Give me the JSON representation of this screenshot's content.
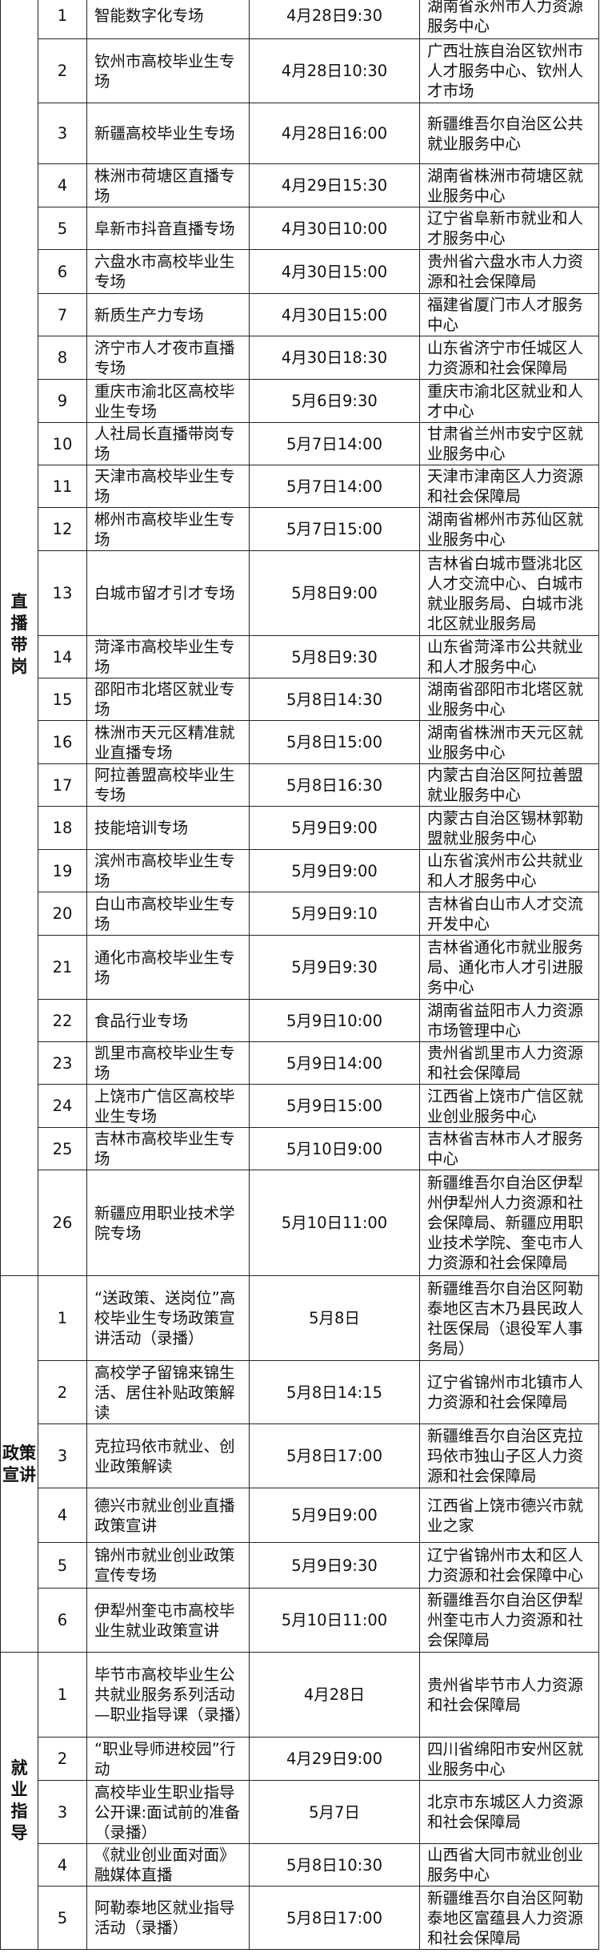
{
  "sections": [
    {
      "category": "直播带岗",
      "rows": [
        {
          "no": "1",
          "name": "智能数字化专场",
          "time": "4月28日9:30",
          "org": "湖南省永州市人力资源服务中心"
        },
        {
          "no": "2",
          "name": "钦州市高校毕业生专场",
          "time": "4月28日10:30",
          "org": "广西壮族自治区钦州市人才服务中心、钦州人才市场"
        },
        {
          "no": "3",
          "name": "新疆高校毕业生专场",
          "time": "4月28日16:00",
          "org": "新疆维吾尔自治区公共就业服务中心"
        },
        {
          "no": "4",
          "name": "株洲市荷塘区直播专场",
          "time": "4月29日15:30",
          "org": "湖南省株洲市荷塘区就业服务中心"
        },
        {
          "no": "5",
          "name": "阜新市抖音直播专场",
          "time": "4月30日10:00",
          "org": "辽宁省阜新市就业和人才服务中心"
        },
        {
          "no": "6",
          "name": "六盘水市高校毕业生专场",
          "time": "4月30日15:00",
          "org": "贵州省六盘水市人力资源和社会保障局"
        },
        {
          "no": "7",
          "name": "新质生产力专场",
          "time": "4月30日15:00",
          "org": "福建省厦门市人才服务中心"
        },
        {
          "no": "8",
          "name": "济宁市人才夜市直播专场",
          "time": "4月30日18:30",
          "org": "山东省济宁市任城区人力资源和社会保障局"
        },
        {
          "no": "9",
          "name": "重庆市渝北区高校毕业生专场",
          "time": "5月6日9:30",
          "org": "重庆市渝北区就业和人才中心"
        },
        {
          "no": "10",
          "name": "人社局长直播带岗专场",
          "time": "5月7日14:00",
          "org": "甘肃省兰州市安宁区就业服务中心"
        },
        {
          "no": "11",
          "name": "天津市高校毕业生专场",
          "time": "5月7日14:00",
          "org": "天津市津南区人力资源和社会保障局"
        },
        {
          "no": "12",
          "name": "郴州市高校毕业生专场",
          "time": "5月7日15:00",
          "org": "湖南省郴州市苏仙区就业服务中心"
        },
        {
          "no": "13",
          "name": "白城市留才引才专场",
          "time": "5月8日9:00",
          "org": "吉林省白城市暨洮北区人才交流中心、白城市就业服务局、白城市洮北区就业服务局"
        },
        {
          "no": "14",
          "name": "菏泽市高校毕业生专场",
          "time": "5月8日9:30",
          "org": "山东省菏泽市公共就业和人才服务中心"
        },
        {
          "no": "15",
          "name": "邵阳市北塔区就业专场",
          "time": "5月8日14:30",
          "org": "湖南省邵阳市北塔区就业服务中心"
        },
        {
          "no": "16",
          "name": "株洲市天元区精准就业直播专场",
          "time": "5月8日15:00",
          "org": "湖南省株洲市天元区就业服务中心"
        },
        {
          "no": "17",
          "name": "阿拉善盟高校毕业生专场",
          "time": "5月8日16:30",
          "org": "内蒙古自治区阿拉善盟就业服务中心"
        },
        {
          "no": "18",
          "name": "技能培训专场",
          "time": "5月9日9:00",
          "org": "内蒙古自治区锡林郭勒盟就业服务中心"
        },
        {
          "no": "19",
          "name": "滨州市高校毕业生专场",
          "time": "5月9日9:00",
          "org": "山东省滨州市公共就业和人才服务中心"
        },
        {
          "no": "20",
          "name": "白山市高校毕业生专场",
          "time": "5月9日9:10",
          "org": "吉林省白山市人才交流开发中心"
        },
        {
          "no": "21",
          "name": "通化市高校毕业生专场",
          "time": "5月9日9:30",
          "org": "吉林省通化市就业服务局、通化市人才引进服务中心"
        },
        {
          "no": "22",
          "name": "食品行业专场",
          "time": "5月9日10:00",
          "org": "湖南省益阳市人力资源市场管理中心"
        },
        {
          "no": "23",
          "name": "凯里市高校毕业生专场",
          "time": "5月9日14:00",
          "org": "贵州省凯里市人力资源和社会保障局"
        },
        {
          "no": "24",
          "name": "上饶市广信区高校毕业生专场",
          "time": "5月9日15:00",
          "org": "江西省上饶市广信区就业创业服务中心"
        },
        {
          "no": "25",
          "name": "吉林市高校毕业生专场",
          "time": "5月10日9:00",
          "org": "吉林省吉林市人才服务中心"
        },
        {
          "no": "26",
          "name": "新疆应用职业技术学院专场",
          "time": "5月10日11:00",
          "org": "新疆维吾尔自治区伊犁州伊犁州人力资源和社会保障局、新疆应用职业技术学院、奎屯市人力资源和社会保障局"
        }
      ]
    },
    {
      "category": "政策宣讲",
      "rows": [
        {
          "no": "1",
          "name": "“送政策、送岗位”高校毕业生专场政策宣讲活动（录播）",
          "time": "5月8日",
          "org": "新疆维吾尔自治区阿勒泰地区吉木乃县民政人社医保局（退役军人事务局）"
        },
        {
          "no": "2",
          "name": "高校学子留锦来锦生活、居住补贴政策解读",
          "time": "5月8日14:15",
          "org": "辽宁省锦州市北镇市人力资源和社会保障局"
        },
        {
          "no": "3",
          "name": "克拉玛依市就业、创业政策解读",
          "time": "5月8日17:00",
          "org": "新疆维吾尔自治区克拉玛依市独山子区人力资源和社会保障局"
        },
        {
          "no": "4",
          "name": "德兴市就业创业直播政策宣讲",
          "time": "5月9日9:00",
          "org": "江西省上饶市德兴市就业之家"
        },
        {
          "no": "5",
          "name": "锦州市就业创业政策宣传专场",
          "time": "5月9日9:30",
          "org": "辽宁省锦州市太和区人力资源和社会保障中心"
        },
        {
          "no": "6",
          "name": "伊犁州奎屯市高校毕业生就业政策宣讲",
          "time": "5月10日11:00",
          "org": "新疆维吾尔自治区伊犁州奎屯市人力资源和社会保障局"
        }
      ]
    },
    {
      "category": "就业指导",
      "rows": [
        {
          "no": "1",
          "name": "毕节市高校毕业生公共就业服务系列活动—职业指导课（录播）",
          "time": "4月28日",
          "org": "贵州省毕节市人力资源和社会保障局"
        },
        {
          "no": "2",
          "name": "“职业导师进校园”行动",
          "time": "4月29日9:00",
          "org": "四川省绵阳市安州区就业服务中心"
        },
        {
          "no": "3",
          "name": "高校毕业生职业指导公开课:面试前的准备（录播）",
          "time": "5月7日",
          "org": "北京市东城区人力资源和社会保障局"
        },
        {
          "no": "4",
          "name": "《就业创业面对面》融媒体直播",
          "time": "5月8日10:30",
          "org": "山西省大同市就业创业服务中心"
        },
        {
          "no": "5",
          "name": "阿勒泰地区就业指导活动（录播）",
          "time": "5月8日17:00",
          "org": "新疆维吾尔自治区阿勒泰地区富蕴县人力资源和社会保障局"
        }
      ]
    }
  ]
}
